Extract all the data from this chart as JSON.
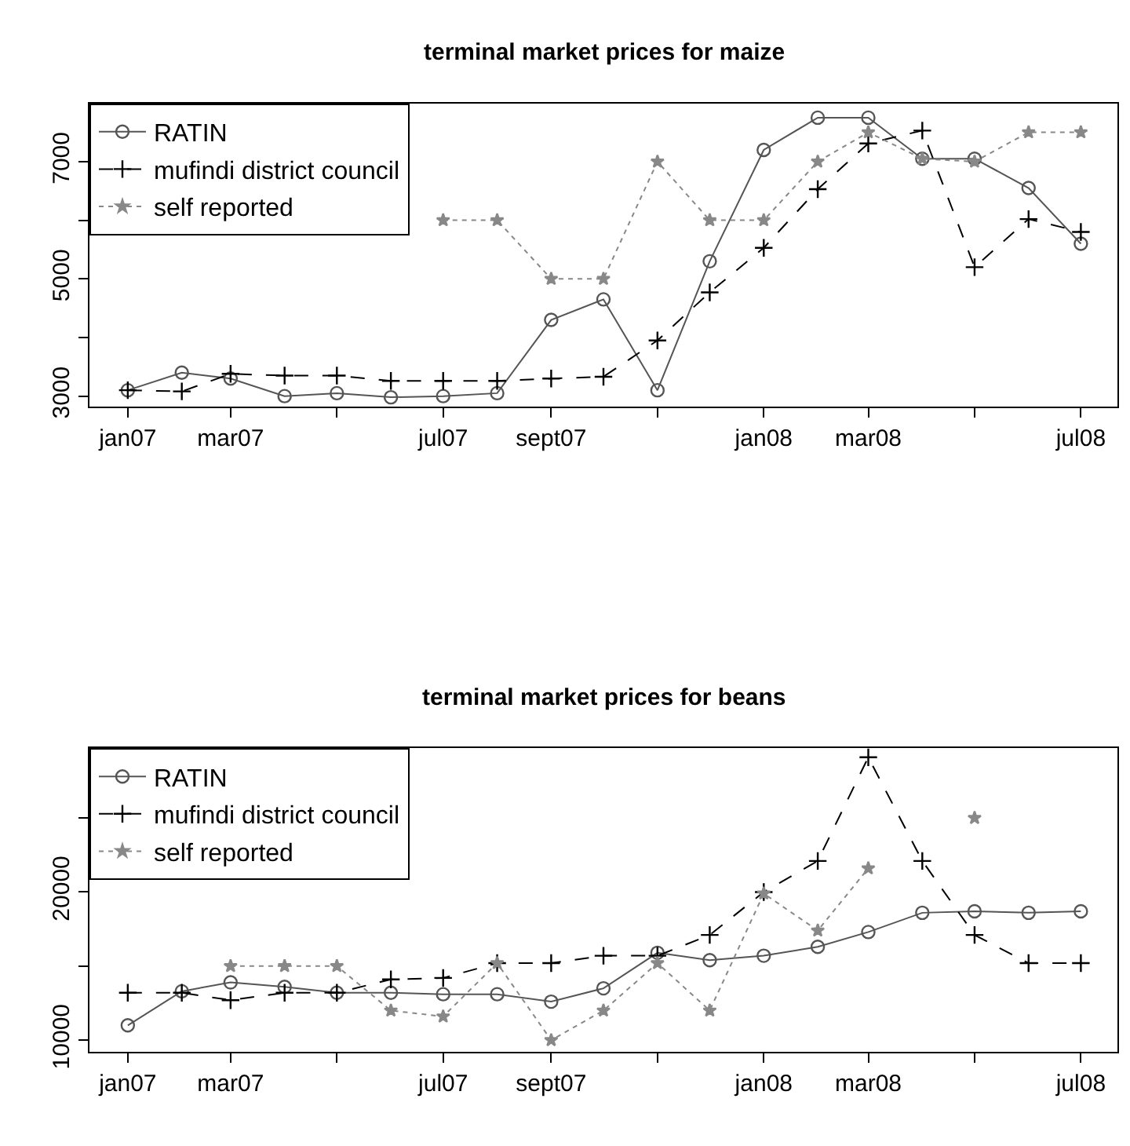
{
  "chart_data": [
    {
      "type": "line",
      "title": "terminal market prices for maize",
      "x": [
        "2007-01",
        "2007-02",
        "2007-03",
        "2007-04",
        "2007-05",
        "2007-06",
        "2007-07",
        "2007-08",
        "2007-09",
        "2007-10",
        "2007-11",
        "2007-12",
        "2008-01",
        "2008-02",
        "2008-03",
        "2008-04",
        "2008-05",
        "2008-06",
        "2008-07"
      ],
      "series": [
        {
          "name": "RATIN",
          "color": "#555555",
          "marker": "circle",
          "line_style": "solid",
          "values": [
            3100,
            3400,
            3300,
            3000,
            3050,
            2980,
            3000,
            3050,
            4300,
            4650,
            3100,
            5300,
            7200,
            7750,
            7750,
            7050,
            7050,
            6550,
            5600
          ]
        },
        {
          "name": "mufindi district council",
          "color": "#000000",
          "marker": "cross",
          "line_style": "dashed",
          "values": [
            3100,
            3080,
            3380,
            3350,
            3350,
            3260,
            3260,
            3260,
            3300,
            3330,
            3950,
            4770,
            5530,
            6530,
            7310,
            7530,
            5200,
            6020,
            5800
          ]
        },
        {
          "name": "self reported",
          "color": "#888888",
          "marker": "star",
          "line_style": "dotted",
          "values": [
            null,
            null,
            null,
            null,
            null,
            null,
            6000,
            6000,
            5000,
            5000,
            7000,
            6000,
            6000,
            7000,
            7500,
            7050,
            7000,
            7500,
            7500
          ]
        }
      ],
      "xlim": [
        "2006-12-10",
        "2008-07-22"
      ],
      "xticks": [
        {
          "value": "2007-01",
          "label": "jan07"
        },
        {
          "value": "2007-03",
          "label": "mar07"
        },
        {
          "value": "2007-05",
          "label": null
        },
        {
          "value": "2007-07",
          "label": "jul07"
        },
        {
          "value": "2007-09",
          "label": "sept07"
        },
        {
          "value": "2007-11",
          "label": null
        },
        {
          "value": "2008-01",
          "label": "jan08"
        },
        {
          "value": "2008-03",
          "label": "mar08"
        },
        {
          "value": "2008-05",
          "label": null
        },
        {
          "value": "2008-07",
          "label": "jul08"
        }
      ],
      "ylim": [
        2820,
        7990
      ],
      "yticks": [
        3000,
        {
          "value": 4000,
          "label": null
        },
        5000,
        {
          "value": 6000,
          "label": null
        },
        7000
      ],
      "legend": "top left"
    },
    {
      "type": "line",
      "title": "terminal market prices for beans",
      "x": [
        "2007-01",
        "2007-02",
        "2007-03",
        "2007-04",
        "2007-05",
        "2007-06",
        "2007-07",
        "2007-08",
        "2007-09",
        "2007-10",
        "2007-11",
        "2007-12",
        "2008-01",
        "2008-02",
        "2008-03",
        "2008-04",
        "2008-05",
        "2008-06",
        "2008-07"
      ],
      "series": [
        {
          "name": "RATIN",
          "color": "#555555",
          "marker": "circle",
          "line_style": "solid",
          "values": [
            11000,
            13300,
            13900,
            13600,
            13200,
            13200,
            13100,
            13100,
            12600,
            13500,
            15900,
            15400,
            15700,
            16300,
            17300,
            18600,
            18700,
            18600,
            18700
          ]
        },
        {
          "name": "mufindi district council",
          "color": "#000000",
          "marker": "cross",
          "line_style": "dashed",
          "values": [
            13200,
            13200,
            12700,
            13200,
            13200,
            14100,
            14200,
            15200,
            15200,
            15700,
            15700,
            17100,
            20000,
            22100,
            29100,
            22100,
            17100,
            15200,
            15200
          ]
        },
        {
          "name": "self reported",
          "color": "#888888",
          "marker": "star",
          "line_style": "dotted",
          "values": [
            null,
            null,
            15000,
            15000,
            15000,
            12000,
            11600,
            15200,
            10000,
            12000,
            15200,
            12000,
            19900,
            17400,
            21600,
            null,
            25000,
            null,
            null
          ]
        }
      ],
      "xlim": [
        "2006-12-10",
        "2008-07-22"
      ],
      "xticks": [
        {
          "value": "2007-01",
          "label": "jan07"
        },
        {
          "value": "2007-03",
          "label": "mar07"
        },
        {
          "value": "2007-05",
          "label": null
        },
        {
          "value": "2007-07",
          "label": "jul07"
        },
        {
          "value": "2007-09",
          "label": "sept07"
        },
        {
          "value": "2007-11",
          "label": null
        },
        {
          "value": "2008-01",
          "label": "jan08"
        },
        {
          "value": "2008-03",
          "label": "mar08"
        },
        {
          "value": "2008-05",
          "label": null
        },
        {
          "value": "2008-07",
          "label": "jul08"
        }
      ],
      "ylim": [
        9240,
        29700
      ],
      "yticks": [
        10000,
        {
          "value": 15000,
          "label": null
        },
        20000,
        {
          "value": 25000,
          "label": null
        }
      ],
      "legend": "top left"
    }
  ]
}
